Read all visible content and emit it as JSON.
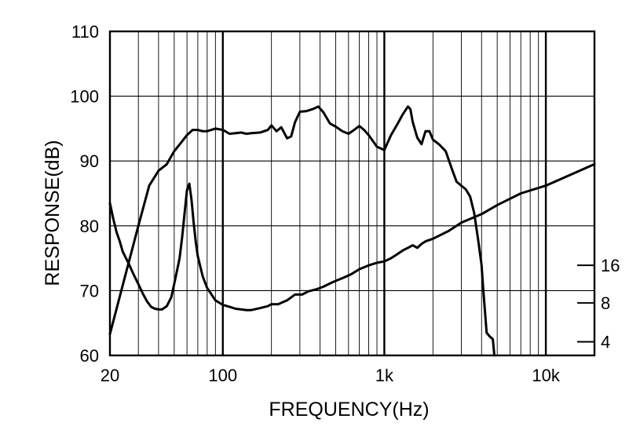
{
  "chart_data": {
    "type": "line",
    "title": "",
    "xlabel": "FREQUENCY(Hz)",
    "ylabel": "RESPONSE(dB)",
    "x_scale": "log",
    "xlim": [
      20,
      20000
    ],
    "ylim": [
      60,
      110
    ],
    "grid": true,
    "x_tick_labels": [
      {
        "value": 20,
        "label": "20"
      },
      {
        "value": 100,
        "label": "100"
      },
      {
        "value": 1000,
        "label": "1k"
      },
      {
        "value": 10000,
        "label": "10k"
      }
    ],
    "y_tick_labels": [
      {
        "value": 60,
        "label": "60"
      },
      {
        "value": 70,
        "label": "70"
      },
      {
        "value": 80,
        "label": "80"
      },
      {
        "value": 90,
        "label": "90"
      },
      {
        "value": 100,
        "label": "100"
      },
      {
        "value": 110,
        "label": "110"
      }
    ],
    "right_axis_labels": [
      {
        "value": 73.9,
        "label": "16"
      },
      {
        "value": 68.1,
        "label": "8"
      },
      {
        "value": 62.1,
        "label": "4"
      }
    ],
    "series": [
      {
        "points": [
          [
            20,
            63.3
          ],
          [
            25,
            72.5
          ],
          [
            30,
            80
          ],
          [
            35,
            86.2
          ],
          [
            40,
            88.5
          ],
          [
            45,
            89.5
          ],
          [
            50,
            91.5
          ],
          [
            55,
            92.8
          ],
          [
            60,
            94
          ],
          [
            65,
            94.8
          ],
          [
            70,
            94.8
          ],
          [
            75,
            94.6
          ],
          [
            80,
            94.6
          ],
          [
            90,
            95
          ],
          [
            100,
            94.8
          ],
          [
            110,
            94.2
          ],
          [
            120,
            94.3
          ],
          [
            130,
            94.4
          ],
          [
            140,
            94.2
          ],
          [
            150,
            94.3
          ],
          [
            170,
            94.4
          ],
          [
            190,
            94.8
          ],
          [
            200,
            95.5
          ],
          [
            215,
            94.6
          ],
          [
            230,
            95.2
          ],
          [
            250,
            93.5
          ],
          [
            265,
            93.8
          ],
          [
            280,
            96
          ],
          [
            300,
            97.6
          ],
          [
            330,
            97.7
          ],
          [
            360,
            98
          ],
          [
            390,
            98.4
          ],
          [
            420,
            97.5
          ],
          [
            460,
            95.8
          ],
          [
            500,
            95.3
          ],
          [
            550,
            94.6
          ],
          [
            600,
            94.2
          ],
          [
            650,
            94.8
          ],
          [
            700,
            95.4
          ],
          [
            750,
            94.8
          ],
          [
            800,
            94
          ],
          [
            900,
            92.2
          ],
          [
            1000,
            91.7
          ],
          [
            1100,
            94
          ],
          [
            1200,
            95.6
          ],
          [
            1300,
            97.2
          ],
          [
            1400,
            98.4
          ],
          [
            1450,
            98
          ],
          [
            1500,
            96
          ],
          [
            1600,
            93.6
          ],
          [
            1700,
            92.6
          ],
          [
            1800,
            94.6
          ],
          [
            1900,
            94.6
          ],
          [
            2000,
            93.3
          ],
          [
            2200,
            92.5
          ],
          [
            2400,
            91.5
          ],
          [
            2600,
            89
          ],
          [
            2800,
            86.8
          ],
          [
            3000,
            86.2
          ],
          [
            3200,
            85.6
          ],
          [
            3400,
            84.5
          ],
          [
            3600,
            82
          ],
          [
            3800,
            78
          ],
          [
            4000,
            74
          ],
          [
            4100,
            70
          ],
          [
            4300,
            63.5
          ],
          [
            4500,
            62.9
          ],
          [
            4700,
            62.5
          ],
          [
            4800,
            60
          ]
        ]
      },
      {
        "points": [
          [
            20,
            83.5
          ],
          [
            21,
            81
          ],
          [
            22,
            79
          ],
          [
            23,
            77.6
          ],
          [
            24,
            76
          ],
          [
            26,
            74.3
          ],
          [
            28,
            72.5
          ],
          [
            30,
            71
          ],
          [
            32,
            69.5
          ],
          [
            34,
            68.3
          ],
          [
            36,
            67.5
          ],
          [
            38,
            67.2
          ],
          [
            40,
            67.1
          ],
          [
            42,
            67.1
          ],
          [
            45,
            67.6
          ],
          [
            48,
            69
          ],
          [
            50,
            71
          ],
          [
            52,
            73
          ],
          [
            54,
            75
          ],
          [
            56,
            78.3
          ],
          [
            58,
            82
          ],
          [
            60,
            85.5
          ],
          [
            62,
            86.5
          ],
          [
            64,
            84
          ],
          [
            66,
            80.5
          ],
          [
            68,
            77.5
          ],
          [
            70,
            75.3
          ],
          [
            75,
            72.2
          ],
          [
            80,
            70.4
          ],
          [
            90,
            68.5
          ],
          [
            100,
            67.8
          ],
          [
            110,
            67.5
          ],
          [
            120,
            67.2
          ],
          [
            130,
            67.1
          ],
          [
            140,
            67
          ],
          [
            150,
            67
          ],
          [
            170,
            67.3
          ],
          [
            190,
            67.6
          ],
          [
            200,
            67.9
          ],
          [
            220,
            67.9
          ],
          [
            250,
            68.5
          ],
          [
            280,
            69.4
          ],
          [
            310,
            69.4
          ],
          [
            340,
            69.9
          ],
          [
            380,
            70.2
          ],
          [
            420,
            70.6
          ],
          [
            460,
            71.1
          ],
          [
            500,
            71.5
          ],
          [
            560,
            72
          ],
          [
            620,
            72.5
          ],
          [
            700,
            73.3
          ],
          [
            800,
            73.9
          ],
          [
            900,
            74.3
          ],
          [
            1000,
            74.5
          ],
          [
            1100,
            75
          ],
          [
            1200,
            75.6
          ],
          [
            1300,
            76.2
          ],
          [
            1400,
            76.6
          ],
          [
            1500,
            77
          ],
          [
            1600,
            76.6
          ],
          [
            1700,
            77.2
          ],
          [
            1800,
            77.6
          ],
          [
            2000,
            78
          ],
          [
            2500,
            79.2
          ],
          [
            3000,
            80.5
          ],
          [
            4000,
            81.8
          ],
          [
            5000,
            83.2
          ],
          [
            7000,
            85
          ],
          [
            10000,
            86.2
          ],
          [
            14000,
            87.8
          ],
          [
            20000,
            89.5
          ]
        ]
      }
    ]
  }
}
